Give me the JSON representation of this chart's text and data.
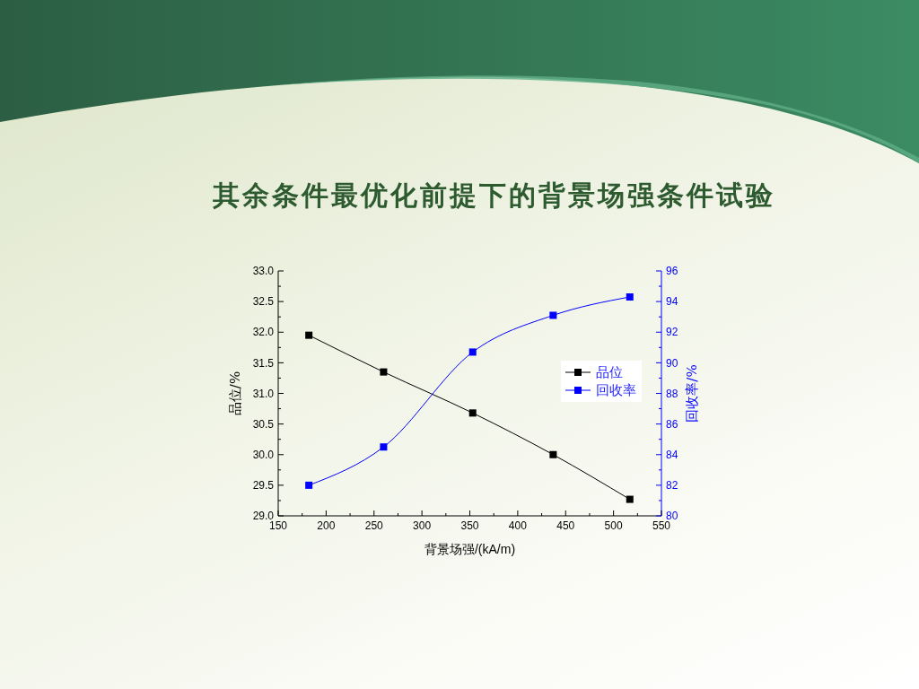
{
  "chart_data": {
    "type": "line",
    "title": "其余条件最优化前提下的背景场强条件试验",
    "xlabel": "背景场强/(kA/m)",
    "ylabel": "品位/%",
    "y2label": "回收率/%",
    "x": [
      182,
      260,
      353,
      437,
      517
    ],
    "series": [
      {
        "name": "品位",
        "color": "#000000",
        "values": [
          31.95,
          31.35,
          30.68,
          30.0,
          29.27
        ]
      },
      {
        "name": "回收率",
        "color": "#0000ff",
        "values": [
          82.0,
          84.5,
          90.7,
          93.1,
          94.3
        ],
        "axis": "y2"
      }
    ],
    "xlim": [
      150,
      550
    ],
    "xticks": [
      150,
      {
        "value": 175,
        "label": null
      },
      200,
      {
        "value": 225,
        "label": null
      },
      250,
      {
        "value": 275,
        "label": null
      },
      300,
      {
        "value": 325,
        "label": null
      },
      350,
      {
        "value": 375,
        "label": null
      },
      400,
      {
        "value": 425,
        "label": null
      },
      450,
      {
        "value": 475,
        "label": null
      },
      500,
      {
        "value": 525,
        "label": null
      },
      550
    ],
    "ylim": [
      29,
      33
    ],
    "yticks": [
      {
        "value": 29,
        "label": "29.0"
      },
      {
        "value": 29.25,
        "label": null
      },
      {
        "value": 29.5,
        "label": "29.5"
      },
      {
        "value": 29.75,
        "label": null
      },
      {
        "value": 30,
        "label": "30.0"
      },
      {
        "value": 30.25,
        "label": null
      },
      {
        "value": 30.5,
        "label": "30.5"
      },
      {
        "value": 30.75,
        "label": null
      },
      {
        "value": 31,
        "label": "31.0"
      },
      {
        "value": 31.25,
        "label": null
      },
      {
        "value": 31.5,
        "label": "31.5"
      },
      {
        "value": 31.75,
        "label": null
      },
      {
        "value": 32,
        "label": "32.0"
      },
      {
        "value": 32.25,
        "label": null
      },
      {
        "value": 32.5,
        "label": "32.5"
      },
      {
        "value": 32.75,
        "label": null
      },
      {
        "value": 33,
        "label": "33.0"
      }
    ],
    "y2lim": [
      80,
      96
    ],
    "y2ticks": [
      80,
      {
        "value": 81,
        "label": null
      },
      82,
      {
        "value": 83,
        "label": null
      },
      84,
      {
        "value": 85,
        "label": null
      },
      86,
      {
        "value": 87,
        "label": null
      },
      88,
      {
        "value": 89,
        "label": null
      },
      90,
      {
        "value": 91,
        "label": null
      },
      92,
      {
        "value": 93,
        "label": null
      },
      94,
      {
        "value": 95,
        "label": null
      },
      96
    ],
    "legend": "right",
    "marker": "square",
    "line_style": "solid"
  }
}
